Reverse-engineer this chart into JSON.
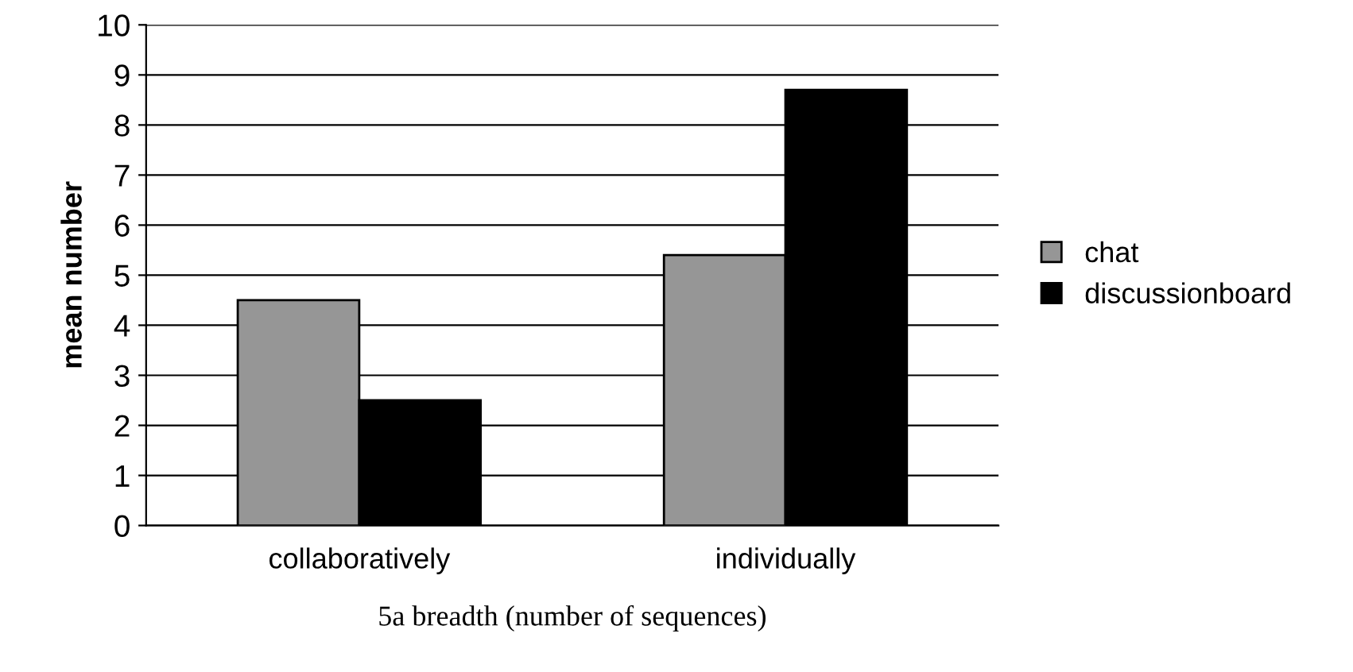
{
  "chart_data": {
    "type": "bar",
    "xlabel": "5a breadth (number of sequences)",
    "ylabel": "mean number",
    "categories": [
      "collaboratively",
      "individually"
    ],
    "series": [
      {
        "name": "chat",
        "color": "#969696",
        "values": [
          4.5,
          5.4
        ]
      },
      {
        "name": "discussionboard",
        "color": "#000000",
        "values": [
          2.5,
          8.7
        ]
      }
    ],
    "ylim": [
      0,
      10
    ],
    "yticks": [
      0,
      1,
      2,
      3,
      4,
      5,
      6,
      7,
      8,
      9,
      10
    ],
    "grid": "y",
    "legend": "right"
  }
}
